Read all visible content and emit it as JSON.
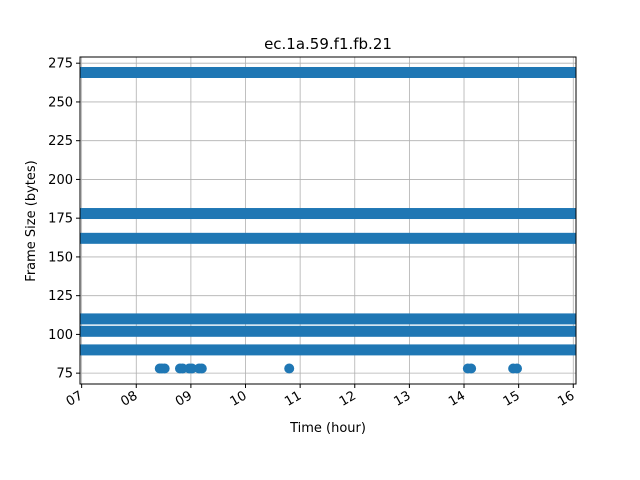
{
  "chart_data": {
    "type": "scatter",
    "title": "ec.1a.59.f1.fb.21",
    "xlabel": "Time (hour)",
    "ylabel": "Frame Size (bytes)",
    "xlim": [
      6.97,
      16.05
    ],
    "ylim": [
      68,
      279
    ],
    "grid": true,
    "x_ticks": [
      {
        "value": 7,
        "label": "07"
      },
      {
        "value": 8,
        "label": "08"
      },
      {
        "value": 9,
        "label": "09"
      },
      {
        "value": 10,
        "label": "10"
      },
      {
        "value": 11,
        "label": "11"
      },
      {
        "value": 12,
        "label": "12"
      },
      {
        "value": 13,
        "label": "13"
      },
      {
        "value": 14,
        "label": "14"
      },
      {
        "value": 15,
        "label": "15"
      },
      {
        "value": 16,
        "label": "16"
      }
    ],
    "y_ticks": [
      {
        "value": 75,
        "label": "75"
      },
      {
        "value": 100,
        "label": "100"
      },
      {
        "value": 125,
        "label": "125"
      },
      {
        "value": 150,
        "label": "150"
      },
      {
        "value": 175,
        "label": "175"
      },
      {
        "value": 200,
        "label": "200"
      },
      {
        "value": 225,
        "label": "225"
      },
      {
        "value": 250,
        "label": "250"
      },
      {
        "value": 275,
        "label": "275"
      }
    ],
    "series": [
      {
        "color": "#1f77b4",
        "dense_bands": [
          {
            "y": 269,
            "x_range": [
              7.0,
              16.05
            ]
          },
          {
            "y": 178,
            "x_range": [
              7.0,
              16.05
            ]
          },
          {
            "y": 162,
            "x_range": [
              7.0,
              16.05
            ]
          },
          {
            "y": 110,
            "x_range": [
              7.0,
              16.05
            ]
          },
          {
            "y": 102,
            "x_range": [
              7.0,
              16.05
            ]
          },
          {
            "y": 90,
            "x_range": [
              7.0,
              16.05
            ]
          }
        ],
        "points": [
          {
            "x": 8.43,
            "y": 78
          },
          {
            "x": 8.47,
            "y": 78
          },
          {
            "x": 8.52,
            "y": 78
          },
          {
            "x": 8.8,
            "y": 78
          },
          {
            "x": 8.85,
            "y": 78
          },
          {
            "x": 8.97,
            "y": 78
          },
          {
            "x": 9.02,
            "y": 78
          },
          {
            "x": 9.15,
            "y": 78
          },
          {
            "x": 9.2,
            "y": 78
          },
          {
            "x": 10.8,
            "y": 78
          },
          {
            "x": 14.07,
            "y": 78
          },
          {
            "x": 14.13,
            "y": 78
          },
          {
            "x": 14.9,
            "y": 78
          },
          {
            "x": 14.97,
            "y": 78
          }
        ]
      }
    ]
  }
}
